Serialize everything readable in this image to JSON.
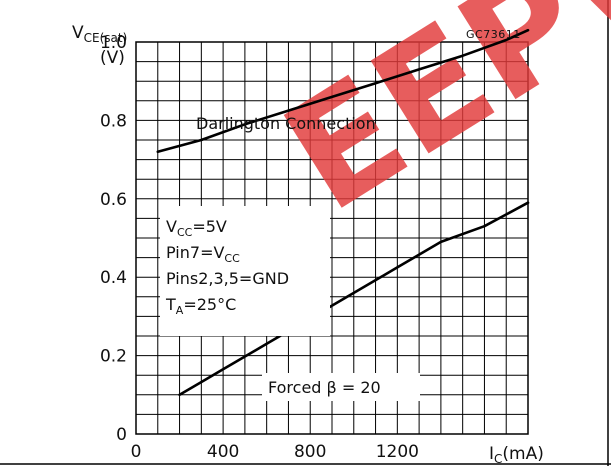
{
  "figure_code": "GC73611",
  "watermark": "EEPW",
  "colors": {
    "curve": "#000000",
    "grid": "#000000",
    "watermark": "#e23a3a"
  },
  "chart_data": {
    "type": "line",
    "y_title": "V",
    "y_title_sub": "CE(sat)",
    "y_unit": "(V)",
    "x_title": "I",
    "x_title_sub": "C",
    "x_unit": "(mA)",
    "xlim": [
      0,
      1800
    ],
    "ylim": [
      0,
      1.0
    ],
    "x_ticks": [
      0,
      400,
      800,
      1200
    ],
    "x_tick_labels": [
      "0",
      "400",
      "800",
      "1200"
    ],
    "y_ticks": [
      0,
      0.2,
      0.4,
      0.6,
      0.8,
      1.0
    ],
    "y_tick_labels": [
      "0",
      "0.2",
      "0.4",
      "0.6",
      "0.8",
      "1.0"
    ],
    "grid": true,
    "series": [
      {
        "name": "Darlington Connection",
        "x": [
          100,
          300,
          500,
          700,
          900,
          1100,
          1300,
          1500,
          1700,
          1800
        ],
        "y": [
          0.72,
          0.75,
          0.79,
          0.825,
          0.86,
          0.895,
          0.93,
          0.965,
          1.005,
          1.03
        ]
      },
      {
        "name": "Forced β = 20",
        "x": [
          200,
          400,
          600,
          800,
          1000,
          1200,
          1400,
          1600,
          1800
        ],
        "y": [
          0.1,
          0.165,
          0.23,
          0.295,
          0.36,
          0.425,
          0.49,
          0.53,
          0.59
        ]
      }
    ],
    "conditions": [
      {
        "main": "V",
        "sub": "CC",
        "rest": "=5V"
      },
      {
        "main": "Pin7=V",
        "sub": "CC",
        "rest": ""
      },
      {
        "main": "Pins2,3,5=GND",
        "sub": "",
        "rest": ""
      },
      {
        "main": "T",
        "sub": "A",
        "rest": "=25°C"
      }
    ]
  }
}
